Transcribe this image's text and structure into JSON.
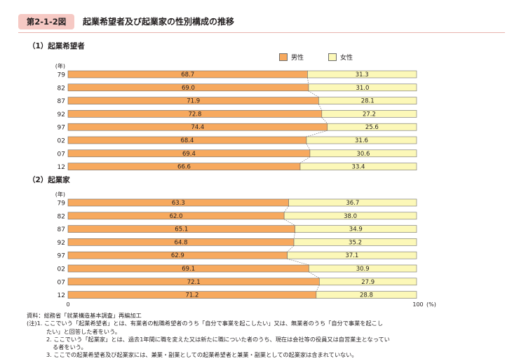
{
  "figure": {
    "number": "第2-1-2図",
    "title": "起業希望者及び起業家の性別構成の推移"
  },
  "legend": {
    "male": "男性",
    "female": "女性"
  },
  "colors": {
    "male": "#f7a95e",
    "female": "#fcf8b8",
    "border": "#6e6e6e"
  },
  "chart_data": [
    {
      "type": "bar",
      "stacked": true,
      "orientation": "horizontal",
      "title": "（1）起業希望者",
      "unit_label": "(年)",
      "categories": [
        "79",
        "82",
        "87",
        "92",
        "97",
        "02",
        "07",
        "12"
      ],
      "series": [
        {
          "name": "男性",
          "values": [
            68.7,
            69.0,
            71.9,
            72.8,
            74.4,
            68.4,
            69.4,
            66.6
          ]
        },
        {
          "name": "女性",
          "values": [
            31.3,
            31.0,
            28.1,
            27.2,
            25.6,
            31.6,
            30.6,
            33.4
          ]
        }
      ],
      "xlim": [
        0,
        100
      ]
    },
    {
      "type": "bar",
      "stacked": true,
      "orientation": "horizontal",
      "title": "（2）起業家",
      "unit_label": "(年)",
      "categories": [
        "79",
        "82",
        "87",
        "92",
        "97",
        "02",
        "07",
        "12"
      ],
      "series": [
        {
          "name": "男性",
          "values": [
            63.3,
            62.0,
            65.1,
            64.8,
            62.9,
            69.1,
            72.1,
            71.2
          ]
        },
        {
          "name": "女性",
          "values": [
            36.7,
            38.0,
            34.9,
            35.2,
            37.1,
            30.9,
            27.9,
            28.8
          ]
        }
      ],
      "xlim": [
        0,
        100
      ],
      "axis_ticks": [
        "0",
        "100"
      ],
      "axis_unit": "(%)"
    }
  ],
  "notes": {
    "source": "資料：総務省「就業構造基本調査」再編加工",
    "note1_a": "(注)1. ここでいう「起業希望者」とは、有業者の転職希望者のうち「自分で事業を起こしたい」又は、無業者のうち「自分で事業を起こし",
    "note1_b": "たい」と回答した者をいう。",
    "note2_a": "2. ここでいう「起業家」とは、過去1年間に職を変えた又は新たに職についた者のうち、現在は会社等の役員又は自営業主となってい",
    "note2_b": "る者をいう。",
    "note3": "3. ここでの起業希望者及び起業家には、兼業・副業としての起業希望者と兼業・副業としての起業家は含まれていない。"
  }
}
